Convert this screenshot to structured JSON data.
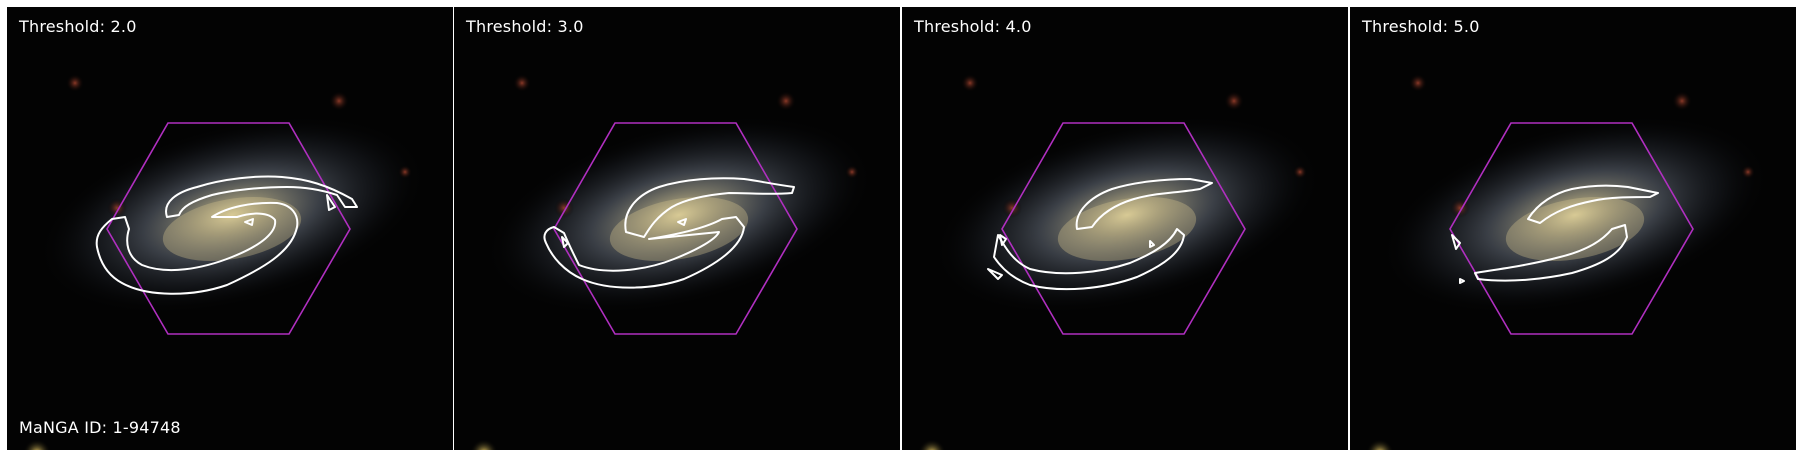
{
  "figure": {
    "panels": [
      {
        "threshold_label": "Threshold: 2.0"
      },
      {
        "threshold_label": "Threshold: 3.0"
      },
      {
        "threshold_label": "Threshold: 4.0"
      },
      {
        "threshold_label": "Threshold: 5.0"
      }
    ],
    "manga_id_label": "MaNGA ID: 1-94748",
    "colors": {
      "background": "#030303",
      "contour": "#ffffff",
      "ifu_hexagon": "#b02fc0",
      "galaxy_core": "#d8c890",
      "galaxy_halo": "#8a96a6"
    }
  }
}
